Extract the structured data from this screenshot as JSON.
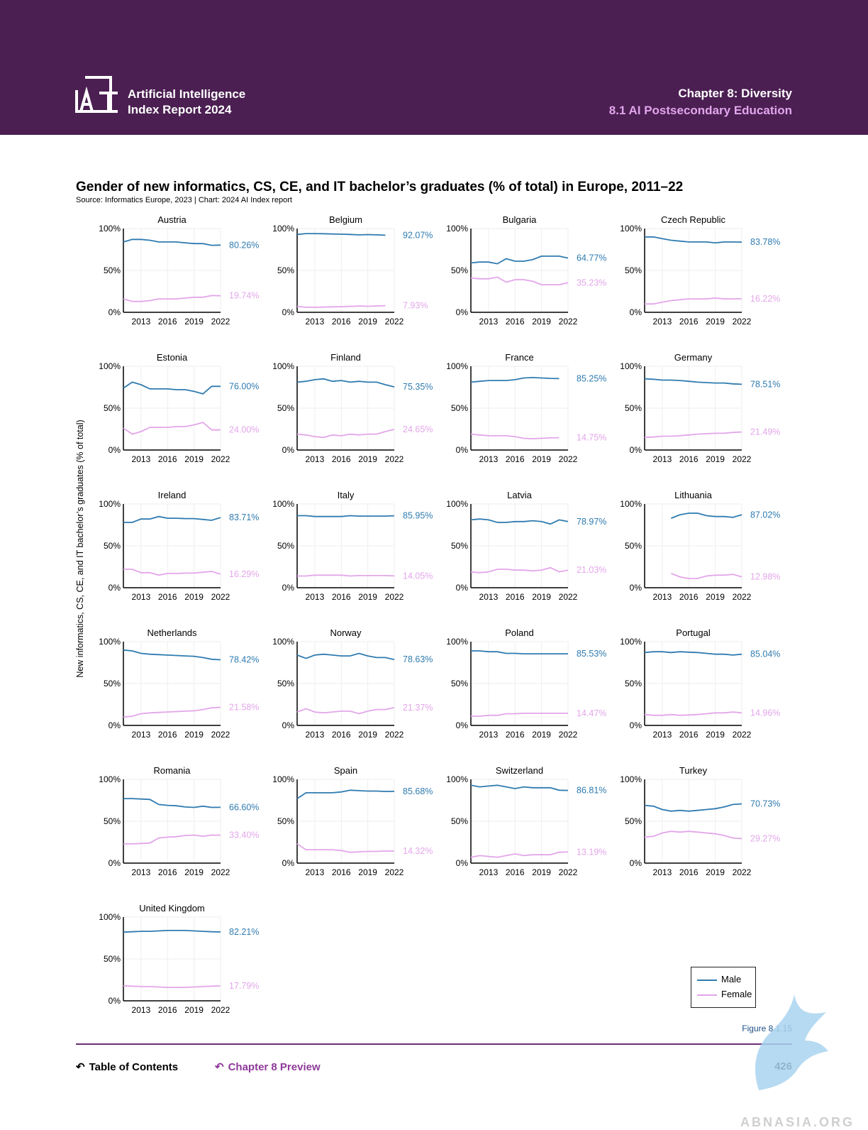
{
  "header": {
    "report_line1": "Artificial Intelligence",
    "report_line2": "Index Report 2024",
    "chapter": "Chapter 8: Diversity",
    "section": "8.1 AI Postsecondary Education"
  },
  "footer": {
    "toc_label": "Table of Contents",
    "preview_label": "Chapter 8 Preview",
    "page_number": "426",
    "figure_label": "Figure 8.1.15"
  },
  "watermark": "ABNASIA.ORG",
  "colors": {
    "header_bg": "#4b1f52",
    "male": "#2f7bb0",
    "female": "#e3a6ea",
    "section": "#e2a5ec"
  },
  "chart_data": {
    "type": "line",
    "title": "Gender of new informatics, CS, CE, and IT bachelor’s graduates (% of total) in Europe, 2011–22",
    "source": "Source: Informatics Europe, 2023 | Chart: 2024 AI Index report",
    "ylabel": "New informatics, CS, CE, and IT bachelor’s graduates (% of total)",
    "ylim": [
      0,
      100
    ],
    "yticks": [
      "0%",
      "50%",
      "100%"
    ],
    "xticks": [
      "2013",
      "2016",
      "2019",
      "2022"
    ],
    "xlim": [
      2011,
      2022
    ],
    "legend": [
      {
        "label": "Male",
        "color": "#2f7bb0"
      },
      {
        "label": "Female",
        "color": "#e3a6ea"
      }
    ],
    "panels": [
      {
        "name": "Austria",
        "years": [
          2011,
          2012,
          2013,
          2014,
          2015,
          2016,
          2017,
          2018,
          2019,
          2020,
          2021,
          2022
        ],
        "male": [
          84,
          87,
          87,
          86,
          84,
          84,
          84,
          83,
          82,
          82,
          80,
          80.26
        ],
        "female": [
          16,
          13,
          13,
          14,
          16,
          16,
          16,
          17,
          18,
          18,
          20,
          19.74
        ],
        "male_label": "80.26%",
        "female_label": "19.74%"
      },
      {
        "name": "Belgium",
        "years": [
          2011,
          2012,
          2013,
          2014,
          2015,
          2016,
          2017,
          2018,
          2019,
          2020,
          2021
        ],
        "male": [
          93,
          94,
          94,
          93.8,
          93.5,
          93.3,
          93,
          92.5,
          92.8,
          92.5,
          92.07
        ],
        "female": [
          7,
          6,
          6,
          6.2,
          6.5,
          6.7,
          7,
          7.5,
          7.2,
          7.5,
          7.93
        ],
        "male_label": "92.07%",
        "female_label": "7.93%"
      },
      {
        "name": "Bulgaria",
        "years": [
          2011,
          2012,
          2013,
          2014,
          2015,
          2016,
          2017,
          2018,
          2019,
          2020,
          2021,
          2022
        ],
        "male": [
          59,
          60,
          60,
          58,
          64,
          61,
          61,
          63,
          67,
          67,
          67,
          64.77
        ],
        "female": [
          41,
          40,
          40,
          42,
          36,
          39,
          39,
          37,
          33,
          33,
          33,
          35.23
        ],
        "male_label": "64.77%",
        "female_label": "35.23%"
      },
      {
        "name": "Czech Republic",
        "years": [
          2011,
          2012,
          2013,
          2014,
          2015,
          2016,
          2017,
          2018,
          2019,
          2020,
          2021,
          2022
        ],
        "male": [
          90,
          90,
          88,
          86,
          85,
          84,
          84,
          84,
          83,
          84,
          84,
          83.78
        ],
        "female": [
          10,
          10,
          12,
          14,
          15,
          16,
          16,
          16,
          17,
          16,
          16,
          16.22
        ],
        "male_label": "83.78%",
        "female_label": "16.22%"
      },
      {
        "name": "Estonia",
        "years": [
          2011,
          2012,
          2013,
          2014,
          2015,
          2016,
          2017,
          2018,
          2019,
          2020,
          2021,
          2022
        ],
        "male": [
          74,
          81,
          78,
          73,
          73,
          73,
          72,
          72,
          70,
          67,
          76,
          76
        ],
        "female": [
          26,
          19,
          22,
          27,
          27,
          27,
          28,
          28,
          30,
          33,
          24,
          24
        ],
        "male_label": "76.00%",
        "female_label": "24.00%"
      },
      {
        "name": "Finland",
        "years": [
          2011,
          2012,
          2013,
          2014,
          2015,
          2016,
          2017,
          2018,
          2019,
          2020,
          2021,
          2022
        ],
        "male": [
          81,
          82,
          84,
          85,
          82,
          83,
          81,
          82,
          81,
          81,
          78,
          75.35
        ],
        "female": [
          19,
          18,
          16,
          15,
          18,
          17,
          19,
          18,
          19,
          19,
          22,
          24.65
        ],
        "male_label": "75.35%",
        "female_label": "24.65%"
      },
      {
        "name": "France",
        "years": [
          2011,
          2012,
          2013,
          2014,
          2015,
          2016,
          2017,
          2018,
          2019,
          2020,
          2021
        ],
        "male": [
          81,
          82,
          83,
          83,
          83,
          84,
          86,
          86.5,
          86,
          85.5,
          85.25
        ],
        "female": [
          19,
          18,
          17,
          17,
          17,
          16,
          14,
          13.5,
          14,
          14.5,
          14.75
        ],
        "male_label": "85.25%",
        "female_label": "14.75%"
      },
      {
        "name": "Germany",
        "years": [
          2011,
          2012,
          2013,
          2014,
          2015,
          2016,
          2017,
          2018,
          2019,
          2020,
          2021,
          2022
        ],
        "male": [
          85,
          84.5,
          83.5,
          83.5,
          83,
          82,
          81,
          80.5,
          80,
          80,
          79,
          78.51
        ],
        "female": [
          15,
          15.5,
          16.5,
          16.5,
          17,
          18,
          19,
          19.5,
          20,
          20,
          21,
          21.49
        ],
        "male_label": "78.51%",
        "female_label": "21.49%"
      },
      {
        "name": "Ireland",
        "years": [
          2011,
          2012,
          2013,
          2014,
          2015,
          2016,
          2017,
          2018,
          2019,
          2020,
          2021,
          2022
        ],
        "male": [
          78,
          78,
          82,
          82,
          85,
          83,
          83,
          82.5,
          82.5,
          81.5,
          80.5,
          83.71
        ],
        "female": [
          22,
          22,
          18,
          18,
          15,
          17,
          17,
          17.5,
          17.5,
          18.5,
          19.5,
          16.29
        ],
        "male_label": "83.71%",
        "female_label": "16.29%"
      },
      {
        "name": "Italy",
        "years": [
          2011,
          2012,
          2013,
          2014,
          2015,
          2016,
          2017,
          2018,
          2019,
          2020,
          2021,
          2022
        ],
        "male": [
          86,
          86,
          85,
          85,
          85,
          85,
          86,
          85.5,
          85.5,
          85.5,
          85.5,
          85.95
        ],
        "female": [
          14,
          14,
          15,
          15,
          15,
          15,
          14,
          14.5,
          14.5,
          14.5,
          14.5,
          14.05
        ],
        "male_label": "85.95%",
        "female_label": "14.05%"
      },
      {
        "name": "Latvia",
        "years": [
          2011,
          2012,
          2013,
          2014,
          2015,
          2016,
          2017,
          2018,
          2019,
          2020,
          2021,
          2022
        ],
        "male": [
          81,
          82,
          81,
          78,
          78,
          79,
          79,
          80,
          79,
          76,
          81,
          78.97
        ],
        "female": [
          19,
          18,
          19,
          22,
          22,
          21,
          21,
          20,
          21,
          24,
          19,
          21.03
        ],
        "male_label": "78.97%",
        "female_label": "21.03%"
      },
      {
        "name": "Lithuania",
        "years": [
          2014,
          2015,
          2016,
          2017,
          2018,
          2019,
          2020,
          2021,
          2022
        ],
        "male": [
          83,
          87,
          89,
          89,
          86,
          85,
          85,
          84,
          87.02
        ],
        "female": [
          17,
          13,
          11,
          11,
          14,
          15,
          15,
          16,
          12.98
        ],
        "male_label": "87.02%",
        "female_label": "12.98%"
      },
      {
        "name": "Netherlands",
        "years": [
          2011,
          2012,
          2013,
          2014,
          2015,
          2016,
          2017,
          2018,
          2019,
          2020,
          2021,
          2022
        ],
        "male": [
          90,
          89,
          86,
          85,
          84.5,
          84,
          83.5,
          83,
          82.5,
          81,
          79,
          78.42
        ],
        "female": [
          10,
          11,
          14,
          15,
          15.5,
          16,
          16.5,
          17,
          17.5,
          19,
          21,
          21.58
        ],
        "male_label": "78.42%",
        "female_label": "21.58%"
      },
      {
        "name": "Norway",
        "years": [
          2011,
          2012,
          2013,
          2014,
          2015,
          2016,
          2017,
          2018,
          2019,
          2020,
          2021,
          2022
        ],
        "male": [
          84,
          80,
          84,
          85,
          84,
          83,
          83,
          86,
          83,
          81,
          81,
          78.63
        ],
        "female": [
          16,
          20,
          16,
          15,
          16,
          17,
          17,
          14,
          17,
          19,
          19,
          21.37
        ],
        "male_label": "78.63%",
        "female_label": "21.37%"
      },
      {
        "name": "Poland",
        "years": [
          2011,
          2012,
          2013,
          2014,
          2015,
          2016,
          2017,
          2018,
          2019,
          2020,
          2021,
          2022
        ],
        "male": [
          89,
          89,
          88,
          88,
          86,
          86,
          85.5,
          85.5,
          85.5,
          85.5,
          85.5,
          85.53
        ],
        "female": [
          11,
          11,
          12,
          12,
          14,
          14,
          14.5,
          14.5,
          14.5,
          14.5,
          14.5,
          14.47
        ],
        "male_label": "85.53%",
        "female_label": "14.47%"
      },
      {
        "name": "Portugal",
        "years": [
          2011,
          2012,
          2013,
          2014,
          2015,
          2016,
          2017,
          2018,
          2019,
          2020,
          2021,
          2022
        ],
        "male": [
          87,
          88,
          88,
          87,
          88,
          87.5,
          87,
          86,
          85,
          85,
          84,
          85.04
        ],
        "female": [
          13,
          12,
          12,
          13,
          12,
          12.5,
          13,
          14,
          15,
          15,
          16,
          14.96
        ],
        "male_label": "85.04%",
        "female_label": "14.96%"
      },
      {
        "name": "Romania",
        "years": [
          2011,
          2012,
          2013,
          2014,
          2015,
          2016,
          2017,
          2018,
          2019,
          2020,
          2021,
          2022
        ],
        "male": [
          77,
          77,
          76.5,
          76,
          70,
          69,
          68.5,
          67,
          66.5,
          68,
          66.5,
          66.6
        ],
        "female": [
          23,
          23,
          23.5,
          24,
          30,
          31,
          31.5,
          33,
          33.5,
          32,
          33.5,
          33.4
        ],
        "male_label": "66.60%",
        "female_label": "33.40%"
      },
      {
        "name": "Spain",
        "years": [
          2011,
          2012,
          2013,
          2014,
          2015,
          2016,
          2017,
          2018,
          2019,
          2020,
          2021,
          2022
        ],
        "male": [
          77,
          84,
          84,
          84,
          84,
          85,
          87,
          86.5,
          86,
          86,
          85.5,
          85.68
        ],
        "female": [
          23,
          16,
          16,
          16,
          16,
          15,
          13,
          13.5,
          14,
          14,
          14.5,
          14.32
        ],
        "male_label": "85.68%",
        "female_label": "14.32%"
      },
      {
        "name": "Switzerland",
        "years": [
          2011,
          2012,
          2013,
          2014,
          2015,
          2016,
          2017,
          2018,
          2019,
          2020,
          2021,
          2022
        ],
        "male": [
          93,
          91,
          92,
          93,
          91,
          89,
          91,
          90,
          90,
          90,
          87,
          86.81
        ],
        "female": [
          7,
          9,
          8,
          7,
          9,
          11,
          9,
          10,
          10,
          10,
          13,
          13.19
        ],
        "male_label": "86.81%",
        "female_label": "13.19%"
      },
      {
        "name": "Turkey",
        "years": [
          2011,
          2012,
          2013,
          2014,
          2015,
          2016,
          2017,
          2018,
          2019,
          2020,
          2021,
          2022
        ],
        "male": [
          69,
          68,
          64,
          62,
          63,
          62,
          63,
          64,
          65,
          67,
          70,
          70.73
        ],
        "female": [
          31,
          32,
          36,
          38,
          37,
          38,
          37,
          36,
          35,
          33,
          30,
          29.27
        ],
        "male_label": "70.73%",
        "female_label": "29.27%"
      },
      {
        "name": "United Kingdom",
        "years": [
          2011,
          2012,
          2013,
          2014,
          2015,
          2016,
          2017,
          2018,
          2019,
          2020,
          2021,
          2022
        ],
        "male": [
          82,
          82.5,
          83,
          83,
          83.5,
          84,
          84,
          84,
          83.5,
          83,
          82.5,
          82.21
        ],
        "female": [
          18,
          17.5,
          17,
          17,
          16.5,
          16,
          16,
          16,
          16.5,
          17,
          17.5,
          17.79
        ],
        "male_label": "82.21%",
        "female_label": "17.79%"
      }
    ]
  }
}
